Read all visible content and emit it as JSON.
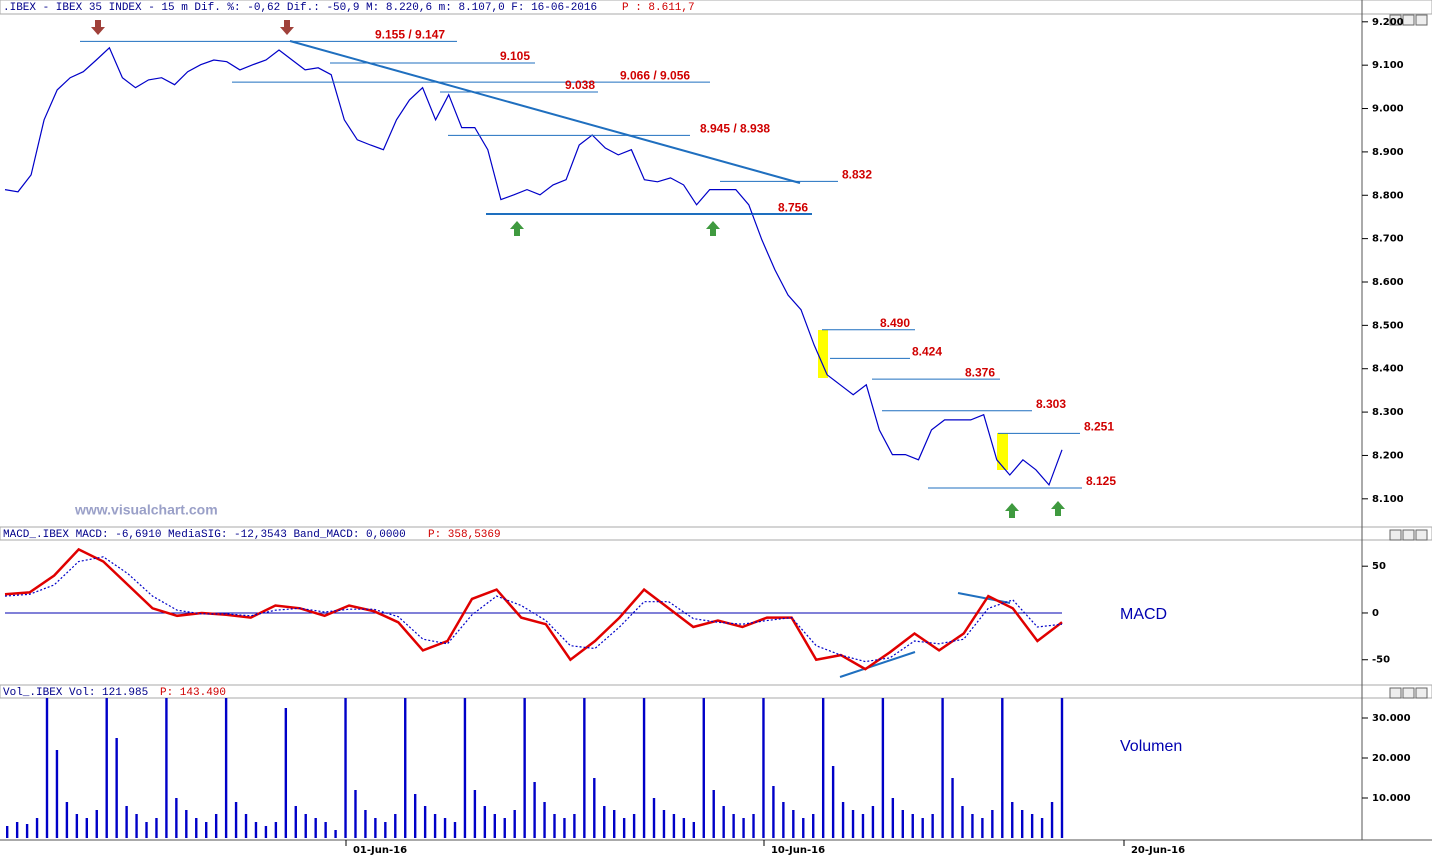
{
  "chart_data": [
    {
      "type": "line",
      "title": ".IBEX - IBEX 35 INDEX -   15 m Dif. %: -0,62 Dif.: -50,9 M: 8.220,6 m: 8.107,0 F: 16-06-2016",
      "subtitle": "P : 8.611,7",
      "watermark": "www.visualchart.com",
      "ylim": [
        8035,
        9218
      ],
      "yticks": [
        {
          "value": 8100,
          "label": "8.100"
        },
        {
          "value": 8200,
          "label": "8.200"
        },
        {
          "value": 8300,
          "label": "8.300"
        },
        {
          "value": 8400,
          "label": "8.400"
        },
        {
          "value": 8500,
          "label": "8.500"
        },
        {
          "value": 8600,
          "label": "8.600"
        },
        {
          "value": 8700,
          "label": "8.700"
        },
        {
          "value": 8800,
          "label": "8.800"
        },
        {
          "value": 8900,
          "label": "8.900"
        },
        {
          "value": 9000,
          "label": "9.000"
        },
        {
          "value": 9100,
          "label": "9.100"
        },
        {
          "value": 9200,
          "label": "9.200"
        }
      ],
      "series": [
        {
          "color": "#0000c8",
          "values": [
            8813,
            8808,
            8847,
            8974,
            9043,
            9071,
            9085,
            9112,
            9140,
            9071,
            9048,
            9066,
            9071,
            9055,
            9085,
            9101,
            9112,
            9108,
            9089,
            9101,
            9112,
            9135,
            9112,
            9089,
            9094,
            9078,
            8974,
            8928,
            8916,
            8905,
            8974,
            9020,
            9048,
            8974,
            9032,
            8956,
            8956,
            8905,
            8790,
            8801,
            8813,
            8801,
            8824,
            8836,
            8916,
            8939,
            8909,
            8893,
            8905,
            8836,
            8831,
            8840,
            8824,
            8778,
            8813,
            8813,
            8813,
            8778,
            8697,
            8628,
            8570,
            8536,
            8455,
            8386,
            8363,
            8340,
            8363,
            8259,
            8202,
            8202,
            8190,
            8259,
            8282,
            8282,
            8282,
            8294,
            8190,
            8155,
            8190,
            8167,
            8132,
            8213
          ]
        }
      ],
      "annotations": [
        {
          "label": "9.155 / 9.147",
          "value": 9155
        },
        {
          "label": "9.105",
          "value": 9105
        },
        {
          "label": "9.066 / 9.056",
          "value": 9061
        },
        {
          "label": "9.038",
          "value": 9038
        },
        {
          "label": "8.945 / 8.938",
          "value": 8938
        },
        {
          "label": "8.832",
          "value": 8832
        },
        {
          "label": "8.756",
          "value": 8756
        },
        {
          "label": "8.490",
          "value": 8490
        },
        {
          "label": "8.424",
          "value": 8424
        },
        {
          "label": "8.376",
          "value": 8376
        },
        {
          "label": "8.303",
          "value": 8303
        },
        {
          "label": "8.251",
          "value": 8251
        },
        {
          "label": "8.125",
          "value": 8125
        }
      ]
    },
    {
      "type": "line",
      "title": "MACD_.IBEX MACD: -6,6910 MediaSIG: -12,3543 Band_MACD: 0,0000",
      "subtitle": "P: 358,5369",
      "label": "MACD",
      "ylim": [
        -77,
        78
      ],
      "yticks": [
        -50,
        0,
        50
      ],
      "series": [
        {
          "color": "#e00000",
          "values": [
            20,
            22,
            40,
            68,
            55,
            30,
            5,
            -3,
            0,
            -2,
            -5,
            8,
            5,
            -3,
            8,
            2,
            -10,
            -40,
            -30,
            15,
            25,
            -5,
            -12,
            -50,
            -30,
            -5,
            25,
            5,
            -15,
            -8,
            -15,
            -5,
            -5,
            -50,
            -45,
            -60,
            -42,
            -22,
            -40,
            -22,
            18,
            5,
            -30,
            -10
          ]
        },
        {
          "color": "#0000c8",
          "values": [
            18,
            20,
            30,
            55,
            60,
            42,
            18,
            3,
            -1,
            -1,
            -3,
            3,
            5,
            1,
            4,
            4,
            -4,
            -28,
            -33,
            -2,
            18,
            8,
            -8,
            -35,
            -38,
            -15,
            12,
            12,
            -6,
            -10,
            -12,
            -8,
            -5,
            -35,
            -45,
            -52,
            -48,
            -30,
            -33,
            -28,
            5,
            14,
            -15,
            -12
          ]
        }
      ]
    },
    {
      "type": "bar",
      "title": "Vol_.IBEX Vol: 121.985",
      "subtitle": "P: 143.490",
      "label": "Volumen",
      "color": "#0000c8",
      "ylim": [
        0,
        35500
      ],
      "yticks": [
        {
          "value": 10000,
          "label": "10.000"
        },
        {
          "value": 20000,
          "label": "20.000"
        },
        {
          "value": 30000,
          "label": "30.000"
        }
      ],
      "x_labels": [
        "01-Jun-16",
        "10-Jun-16",
        "20-Jun-16"
      ],
      "values": [
        3000,
        4000,
        3500,
        5000,
        35000,
        22000,
        9000,
        6000,
        5000,
        7000,
        35000,
        25000,
        8000,
        6000,
        4000,
        5000,
        35000,
        10000,
        7000,
        5000,
        4000,
        6000,
        35000,
        9000,
        6000,
        4000,
        3000,
        4000,
        32500,
        8000,
        6000,
        5000,
        4000,
        2000,
        35000,
        12000,
        7000,
        5000,
        4000,
        6000,
        35000,
        11000,
        8000,
        6000,
        5000,
        4000,
        35000,
        12000,
        8000,
        6000,
        5000,
        7000,
        35000,
        14000,
        9000,
        6000,
        5000,
        6000,
        35000,
        15000,
        8000,
        7000,
        5000,
        6000,
        35000,
        10000,
        7000,
        6000,
        5000,
        4000,
        35000,
        12000,
        8000,
        6000,
        5000,
        6000,
        35000,
        13000,
        9000,
        7000,
        5000,
        6000,
        35000,
        18000,
        9000,
        7000,
        6000,
        8000,
        35000,
        10000,
        7000,
        6000,
        5000,
        6000,
        35000,
        15000,
        8000,
        6000,
        5000,
        7000,
        35000,
        9000,
        7000,
        6000,
        5000,
        9000,
        35000
      ]
    }
  ]
}
